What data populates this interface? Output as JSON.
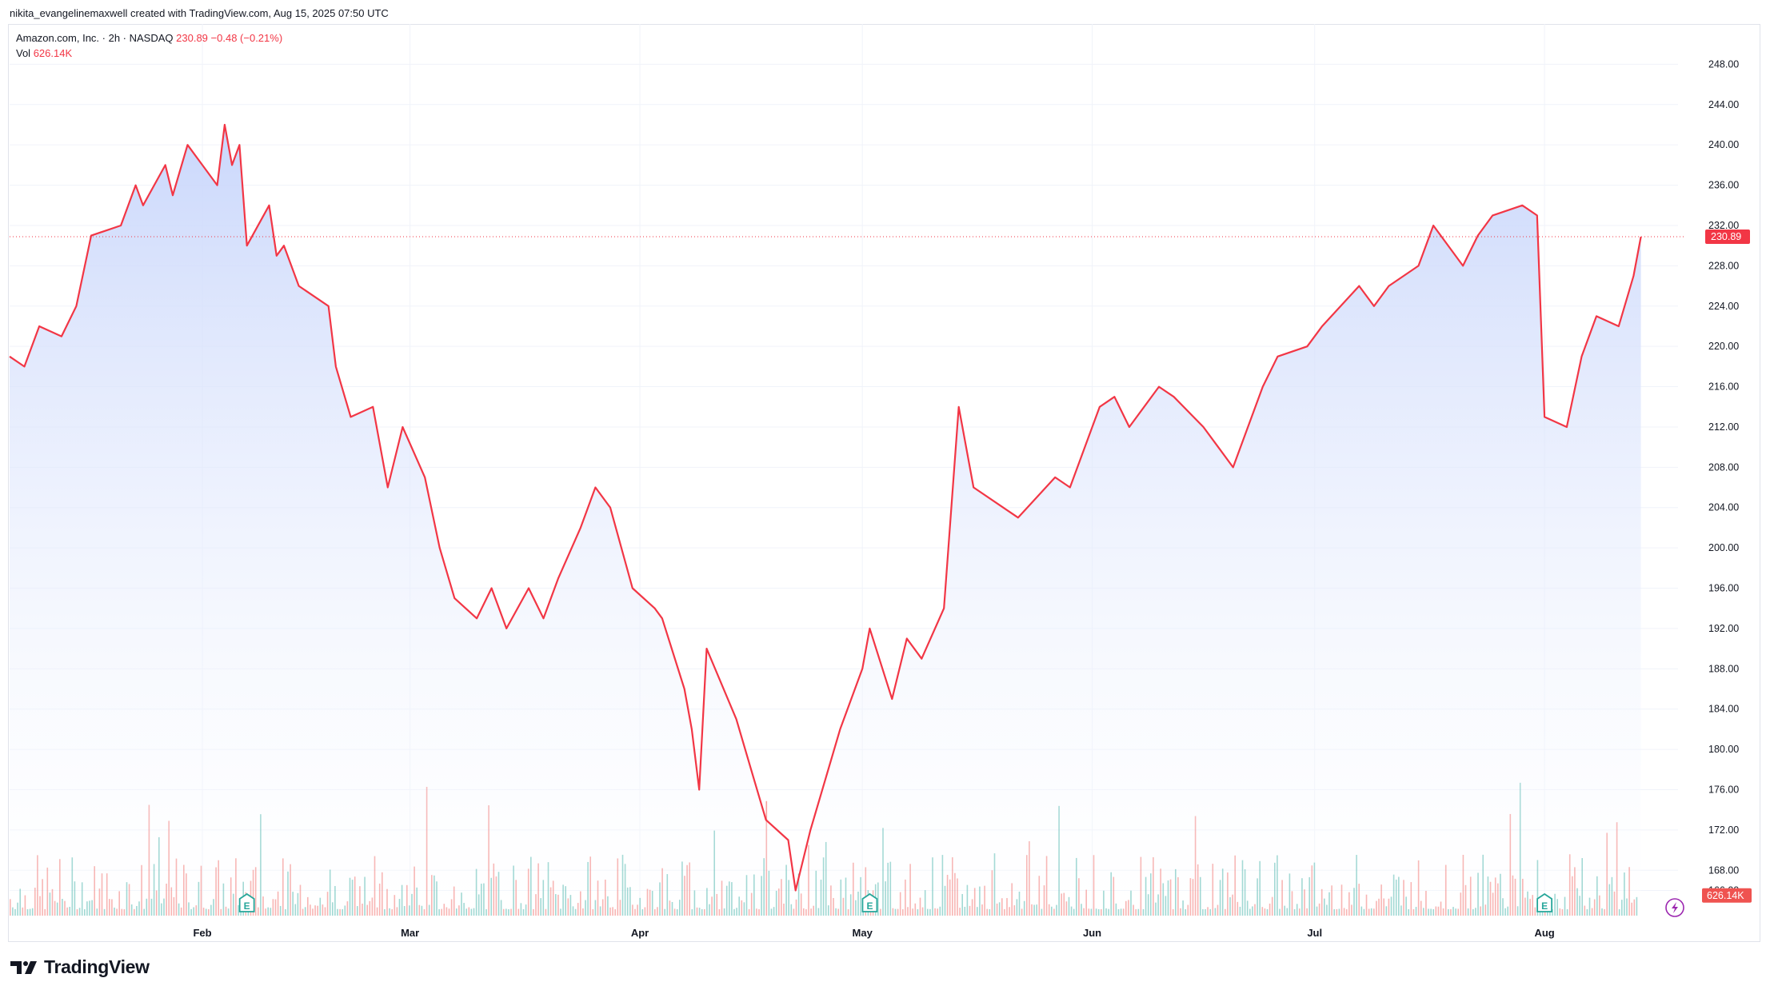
{
  "header": {
    "credit": "nikita_evangelinemaxwell created with TradingView.com, Aug 15, 2025 07:50 UTC"
  },
  "legend": {
    "symbol": "Amazon.com, Inc. · 2h · NASDAQ",
    "last": "230.89",
    "change": "−0.48 (−0.21%)",
    "vol_label": "Vol",
    "vol_value": "626.14K"
  },
  "brand": {
    "name": "TradingView"
  },
  "colors": {
    "line": "#f23645",
    "area_top": "#c7d5fb",
    "area_bottom": "#ffffff",
    "vol_up": "#26a69a",
    "vol_down": "#ef5350",
    "grid": "#f0f3fa",
    "axis_text": "#131722"
  },
  "icons": [
    "earnings-marker-icon",
    "lightning-icon",
    "tradingview-logo-icon"
  ],
  "chart_data": {
    "type": "area",
    "title": "Amazon.com, Inc. · 2h · NASDAQ",
    "y_axis": {
      "ticks": [
        166,
        168,
        172,
        176,
        180,
        184,
        188,
        192,
        196,
        200,
        204,
        208,
        212,
        216,
        220,
        224,
        228,
        232,
        236,
        240,
        244,
        248
      ],
      "tick_labels": [
        "166.00",
        "168.00",
        "172.00",
        "176.00",
        "180.00",
        "184.00",
        "188.00",
        "192.00",
        "196.00",
        "200.00",
        "204.00",
        "208.00",
        "212.00",
        "216.00",
        "220.00",
        "224.00",
        "228.00",
        "232.00",
        "236.00",
        "240.00",
        "244.00",
        "248.00"
      ],
      "range": [
        163.5,
        252
      ],
      "position": "right"
    },
    "x_axis": {
      "tick_labels": [
        "Feb",
        "Mar",
        "Apr",
        "May",
        "Jun",
        "Jul",
        "Aug"
      ],
      "tick_dates": [
        "2025-02-01",
        "2025-03-01",
        "2025-04-01",
        "2025-05-01",
        "2025-06-01",
        "2025-07-01",
        "2025-08-01"
      ],
      "range": [
        "2025-01-06",
        "2025-08-19"
      ]
    },
    "last_price_label": "230.89",
    "last_volume_label": "626.14K",
    "earnings_markers": [
      "2025-02-07",
      "2025-05-02",
      "2025-08-01"
    ],
    "series": [
      {
        "name": "Amazon.com, Inc.",
        "x": [
          "2025-01-06",
          "2025-01-08",
          "2025-01-10",
          "2025-01-13",
          "2025-01-15",
          "2025-01-17",
          "2025-01-21",
          "2025-01-23",
          "2025-01-24",
          "2025-01-27",
          "2025-01-28",
          "2025-01-30",
          "2025-02-03",
          "2025-02-04",
          "2025-02-05",
          "2025-02-06",
          "2025-02-07",
          "2025-02-10",
          "2025-02-11",
          "2025-02-12",
          "2025-02-14",
          "2025-02-18",
          "2025-02-19",
          "2025-02-21",
          "2025-02-24",
          "2025-02-26",
          "2025-02-28",
          "2025-03-03",
          "2025-03-05",
          "2025-03-07",
          "2025-03-10",
          "2025-03-12",
          "2025-03-14",
          "2025-03-17",
          "2025-03-19",
          "2025-03-21",
          "2025-03-24",
          "2025-03-26",
          "2025-03-28",
          "2025-03-31",
          "2025-04-03",
          "2025-04-04",
          "2025-04-07",
          "2025-04-08",
          "2025-04-09",
          "2025-04-10",
          "2025-04-14",
          "2025-04-16",
          "2025-04-18",
          "2025-04-21",
          "2025-04-22",
          "2025-04-24",
          "2025-04-28",
          "2025-05-01",
          "2025-05-02",
          "2025-05-05",
          "2025-05-07",
          "2025-05-09",
          "2025-05-12",
          "2025-05-14",
          "2025-05-16",
          "2025-05-20",
          "2025-05-22",
          "2025-05-27",
          "2025-05-29",
          "2025-06-02",
          "2025-06-04",
          "2025-06-06",
          "2025-06-10",
          "2025-06-12",
          "2025-06-16",
          "2025-06-18",
          "2025-06-20",
          "2025-06-24",
          "2025-06-26",
          "2025-06-30",
          "2025-07-02",
          "2025-07-07",
          "2025-07-09",
          "2025-07-11",
          "2025-07-15",
          "2025-07-17",
          "2025-07-21",
          "2025-07-23",
          "2025-07-25",
          "2025-07-29",
          "2025-07-31",
          "2025-08-01",
          "2025-08-04",
          "2025-08-06",
          "2025-08-08",
          "2025-08-11",
          "2025-08-13",
          "2025-08-14"
        ],
        "values": [
          219,
          218,
          222,
          221,
          224,
          231,
          232,
          236,
          234,
          238,
          235,
          240,
          236,
          242,
          238,
          240,
          230,
          234,
          229,
          230,
          226,
          224,
          218,
          213,
          214,
          206,
          212,
          207,
          200,
          195,
          193,
          196,
          192,
          196,
          193,
          197,
          202,
          206,
          204,
          196,
          194,
          193,
          186,
          182,
          176,
          190,
          183,
          178,
          173,
          171,
          166,
          172,
          182,
          188,
          192,
          185,
          191,
          189,
          194,
          214,
          206,
          204,
          203,
          207,
          206,
          214,
          215,
          212,
          216,
          215,
          212,
          210,
          208,
          216,
          219,
          220,
          222,
          226,
          224,
          226,
          228,
          232,
          228,
          231,
          233,
          234,
          233,
          213,
          212,
          219,
          223,
          222,
          227,
          230.89
        ]
      }
    ],
    "volume": {
      "name": "Vol",
      "last": "626.14K",
      "range_max": 100
    }
  }
}
